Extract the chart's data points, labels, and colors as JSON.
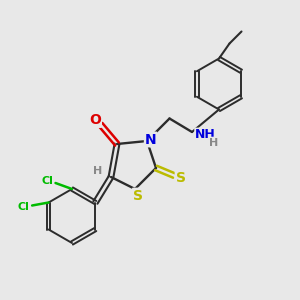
{
  "bg_color": "#e8e8e8",
  "bond_color": "#2c2c2c",
  "atom_colors": {
    "O": "#dd0000",
    "N": "#0000dd",
    "S": "#bbbb00",
    "Cl": "#00bb00",
    "H_label": "#888888",
    "C": "#2c2c2c"
  },
  "figsize": [
    3.0,
    3.0
  ],
  "dpi": 100,
  "xlim": [
    0,
    10
  ],
  "ylim": [
    0,
    10
  ]
}
